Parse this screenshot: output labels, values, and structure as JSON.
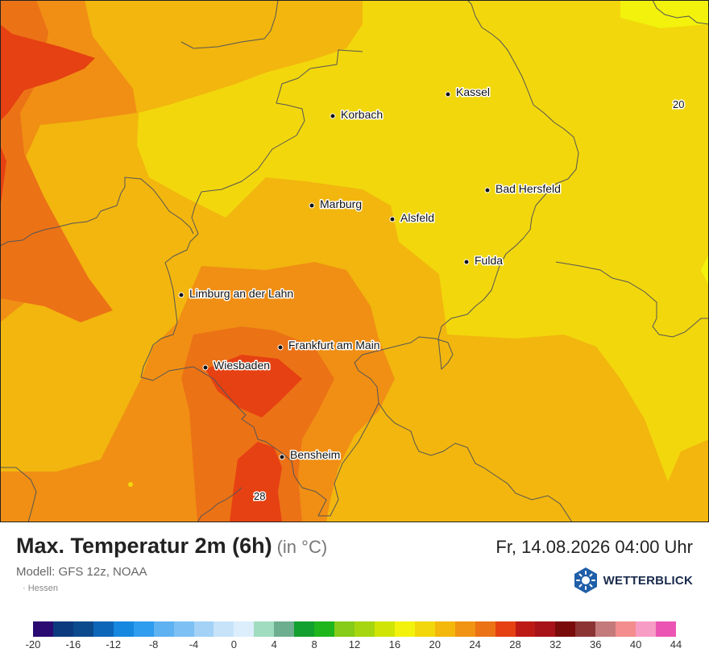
{
  "map": {
    "cities": [
      {
        "name": "Kassel"
      },
      {
        "name": "Korbach"
      },
      {
        "name": "Bad Hersfeld"
      },
      {
        "name": "Marburg"
      },
      {
        "name": "Alsfeld"
      },
      {
        "name": "Fulda"
      },
      {
        "name": "Limburg an der Lahn"
      },
      {
        "name": "Frankfurt am Main"
      },
      {
        "name": "Wiesbaden"
      },
      {
        "name": "Bensheim"
      }
    ],
    "isotherm_labels": [
      "20",
      "28"
    ]
  },
  "header": {
    "title": "Max. Temperatur 2m (6h)",
    "unit": "(in °C)",
    "datetime": "Fr, 14.08.2026 04:00 Uhr",
    "model": "Modell: GFS 12z, NOAA",
    "region": "Hessen"
  },
  "logo": {
    "text": "WETTERBLICK",
    "icon": "sun-hexagon-icon",
    "color": "#1f5fa8"
  },
  "legend": {
    "colors": [
      "#2b0a72",
      "#0c3a7e",
      "#0b4a8c",
      "#0e66b8",
      "#1688e0",
      "#2e9cef",
      "#5fb2f2",
      "#7cc0f4",
      "#a3d2f6",
      "#c6e3fa",
      "#dceefc",
      "#9fdcc0",
      "#6dae8e",
      "#12a02e",
      "#1fb51c",
      "#86cc18",
      "#a6d60f",
      "#d0e405",
      "#f2f20c",
      "#f2d70c",
      "#f3b80b",
      "#f19414",
      "#ec7216",
      "#e64112",
      "#bd1a16",
      "#a81319",
      "#7a0b0b",
      "#8c3434",
      "#c47a7a",
      "#f48d8d",
      "#f79cc5",
      "#ec54b4"
    ],
    "ticks": [
      "-20",
      "-16",
      "-12",
      "-8",
      "-4",
      "0",
      "4",
      "8",
      "12",
      "16",
      "20",
      "24",
      "28",
      "32",
      "36",
      "40",
      "44"
    ]
  }
}
